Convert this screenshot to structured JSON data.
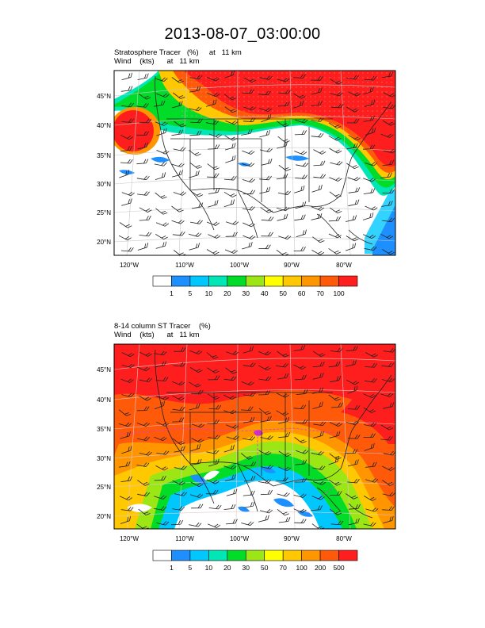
{
  "title": "2013-08-07_03:00:00",
  "panels": [
    {
      "id": "top",
      "subtitle1": "Stratosphere Tracer   (%)     at   11 km",
      "subtitle2": "Wind    (kts)      at   11 km",
      "lat_labels": [
        "45°N",
        "40°N",
        "35°N",
        "30°N",
        "25°N",
        "20°N"
      ],
      "lon_labels": [
        "120°W",
        "110°W",
        "100°W",
        "90°W",
        "80°W"
      ],
      "colorbar": {
        "colors": [
          "#ffffff",
          "#1e8fff",
          "#00c8ff",
          "#00e6b4",
          "#00dc28",
          "#9be614",
          "#ffff00",
          "#ffc800",
          "#ff9600",
          "#ff5a0a",
          "#ff1e1e"
        ],
        "labels": [
          "1",
          "5",
          "10",
          "20",
          "30",
          "40",
          "50",
          "60",
          "70",
          "100"
        ]
      }
    },
    {
      "id": "bottom",
      "subtitle1": "8-14 column ST Tracer    (%)",
      "subtitle2": "Wind    (kts)      at   11 km",
      "lat_labels": [
        "45°N",
        "40°N",
        "35°N",
        "30°N",
        "25°N",
        "20°N"
      ],
      "lon_labels": [
        "120°W",
        "110°W",
        "100°W",
        "90°W",
        "80°W"
      ],
      "colorbar": {
        "colors": [
          "#ffffff",
          "#1e8fff",
          "#00c8ff",
          "#00e6b4",
          "#00dc28",
          "#9be614",
          "#ffff00",
          "#ffc800",
          "#ff9600",
          "#ff5a0a",
          "#ff1e1e"
        ],
        "labels": [
          "1",
          "5",
          "10",
          "20",
          "30",
          "50",
          "70",
          "100",
          "200",
          "500"
        ]
      }
    }
  ]
}
